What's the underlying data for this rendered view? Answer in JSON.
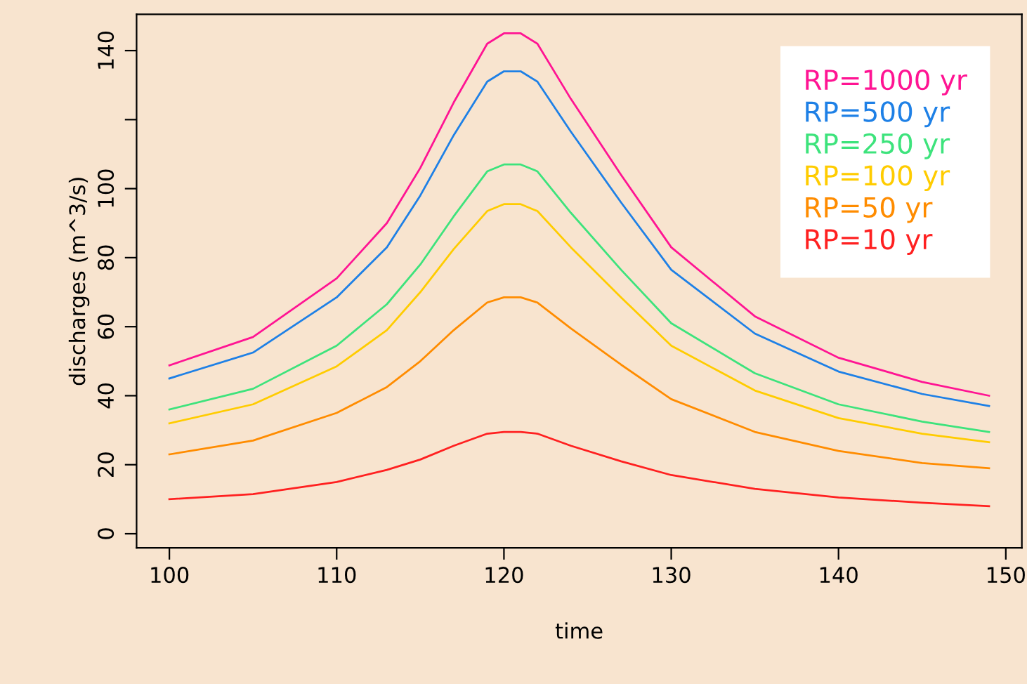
{
  "chart_data": {
    "type": "line",
    "xlabel": "time",
    "ylabel": "discharges (m^3/s)",
    "x": [
      100,
      105,
      110,
      113,
      115,
      117,
      119,
      120,
      121,
      122,
      124,
      127,
      130,
      135,
      140,
      145,
      149
    ],
    "series": [
      {
        "name": "RP=1000 yr",
        "color": "#ff1493",
        "values": [
          48.8,
          57,
          74,
          90,
          106,
          125,
          142,
          145,
          145,
          142,
          126,
          104,
          83,
          63,
          51,
          44,
          40
        ]
      },
      {
        "name": "RP=500 yr",
        "color": "#1e80e6",
        "values": [
          45,
          52.5,
          68.5,
          83,
          98,
          115.5,
          131,
          134,
          134,
          131,
          116.5,
          96,
          76.5,
          58,
          47,
          40.5,
          37
        ]
      },
      {
        "name": "RP=250 yr",
        "color": "#3de37c",
        "values": [
          36,
          42,
          54.5,
          66.5,
          78,
          92,
          105,
          107,
          107,
          105,
          93,
          76.5,
          61,
          46.5,
          37.5,
          32.5,
          29.5
        ]
      },
      {
        "name": "RP=100 yr",
        "color": "#ffcc00",
        "values": [
          32,
          37.5,
          48.5,
          59,
          70,
          82.5,
          93.5,
          95.5,
          95.5,
          93.5,
          83,
          68.5,
          54.5,
          41.5,
          33.5,
          29,
          26.5
        ]
      },
      {
        "name": "RP=50 yr",
        "color": "#ff8c00",
        "values": [
          23,
          27,
          35,
          42.5,
          50,
          59,
          67,
          68.5,
          68.5,
          67,
          59.5,
          49,
          39,
          29.5,
          24,
          20.5,
          19
        ]
      },
      {
        "name": "RP=10 yr",
        "color": "#ff2020",
        "values": [
          10,
          11.5,
          15,
          18.5,
          21.5,
          25.5,
          29,
          29.5,
          29.5,
          29,
          25.5,
          21,
          17,
          13,
          10.5,
          9,
          8
        ]
      }
    ],
    "xlim": [
      98.04,
      150.96
    ],
    "ylim": [
      -4.1,
      150.5
    ],
    "xticks": [
      100,
      110,
      120,
      130,
      140,
      150
    ],
    "yticks": [
      0,
      20,
      40,
      60,
      80,
      100,
      {
        "value": 120,
        "label": null
      },
      140
    ],
    "grid": false,
    "legend": "top right",
    "marker": "none",
    "line_style": "solid"
  }
}
